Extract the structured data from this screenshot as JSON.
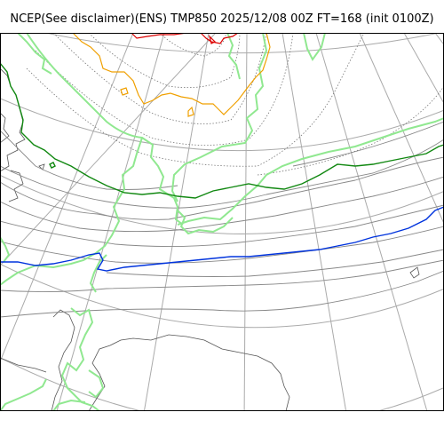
{
  "header": {
    "title": "NCEP(See disclaimer)(ENS) TMP850 2025/12/08 00Z FT=168 (init 0100Z)"
  },
  "map": {
    "field": "TMP850",
    "colors": {
      "graticule": "#aaaaaa",
      "coastline": "#555555",
      "isotherm_minor": "#888888",
      "isotherm_dotted": "#777777",
      "isotherm_zero": "#0033dd",
      "isotherm_dark_green": "#118811",
      "isotherm_light_green": "#90e890",
      "isotherm_orange": "#f0a000",
      "isotherm_red": "#dd0000"
    }
  }
}
